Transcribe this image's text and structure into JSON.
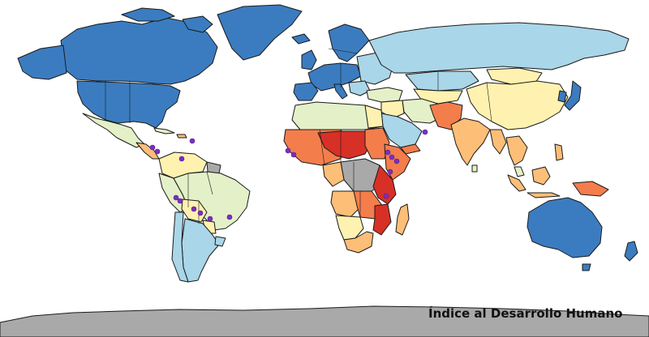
{
  "map": {
    "title": "Índice al Desarrollo Humano",
    "legend_colors": {
      "very_high": "#3b7cc0",
      "high_plus": "#a9d6e8",
      "high": "#e4f0c8",
      "medium_high": "#fff2b0",
      "medium": "#fdbe78",
      "medium_low": "#f47d4c",
      "low": "#d73027",
      "no_data": "#a9a9a9"
    },
    "point_color": "#7b2fbf",
    "point_icon": "location-dot-icon"
  }
}
